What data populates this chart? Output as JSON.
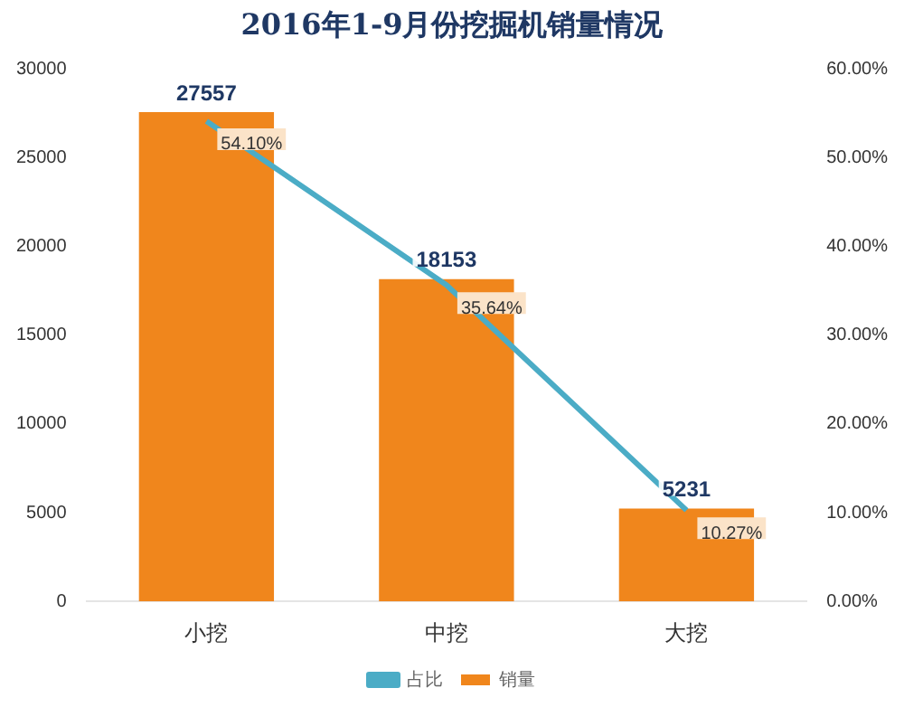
{
  "chart_data": {
    "type": "bar",
    "title": "2016年1-9月份挖掘机销量情况",
    "categories": [
      "小挖",
      "中挖",
      "大挖"
    ],
    "series": [
      {
        "name": "销量",
        "color": "#f0861c",
        "values": [
          27557,
          18153,
          5231
        ],
        "value_labels": [
          "27557",
          "18153",
          "5231"
        ]
      },
      {
        "name": "占比",
        "type": "line",
        "axis": "y2",
        "color": "#4bacc6",
        "values": [
          54.1,
          35.64,
          10.27
        ],
        "value_labels": [
          "54.10%",
          "35.64%",
          "10.27%"
        ]
      }
    ],
    "ylim": [
      0,
      30000
    ],
    "yticks": [
      0,
      5000,
      10000,
      15000,
      20000,
      25000,
      30000
    ],
    "y2lim": [
      0,
      60
    ],
    "y2ticks": [
      {
        "value": 0,
        "label": "0.00%"
      },
      {
        "value": 10,
        "label": "10.00%"
      },
      {
        "value": 20,
        "label": "20.00%"
      },
      {
        "value": 30,
        "label": "30.00%"
      },
      {
        "value": 40,
        "label": "40.00%"
      },
      {
        "value": 50,
        "label": "50.00%"
      },
      {
        "value": 60,
        "label": "60.00%"
      }
    ],
    "grid": false,
    "legend": "bottom",
    "marker": "none"
  }
}
